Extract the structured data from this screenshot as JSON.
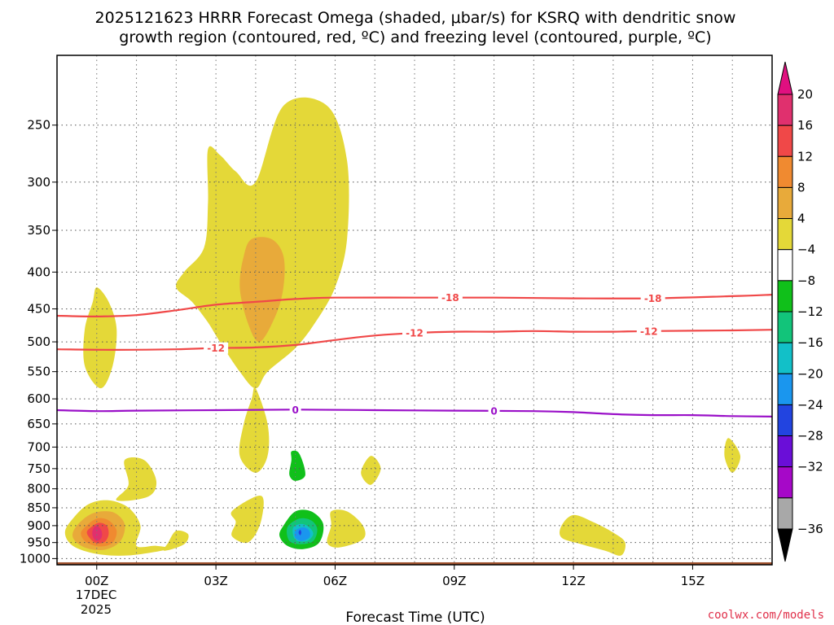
{
  "title_line1": "2025121623 HRRR Forecast Omega (shaded, μbar/s) for KSRQ with dendritic snow",
  "title_line2": "growth region (contoured, red, ºC) and freezing level (contoured, purple, ºC)",
  "credit": "coolwx.com/models",
  "chart_data": {
    "type": "contour",
    "title": "2025121623 HRRR Forecast Omega (shaded, μbar/s) for KSRQ with dendritic snow growth region (contoured, red, ºC) and freezing level (contoured, purple, ºC)",
    "xlabel": "Forecast Time (UTC)",
    "ylabel": "",
    "x_ticks": [
      "00Z",
      "03Z",
      "06Z",
      "09Z",
      "12Z",
      "15Z"
    ],
    "x_tick_hours": [
      0,
      3,
      6,
      9,
      12,
      15
    ],
    "x_date_label": [
      "17DEC",
      "2025"
    ],
    "xlim_hours": [
      -1,
      17
    ],
    "y_ticks": [
      250,
      300,
      350,
      400,
      450,
      500,
      550,
      600,
      650,
      700,
      750,
      800,
      850,
      900,
      950,
      1000
    ],
    "y_scale": "log-pressure",
    "ylim_hpa": [
      1020,
      200
    ],
    "grid": true,
    "colorbar": {
      "labels": [
        "20",
        "16",
        "12",
        "8",
        "4",
        "−4",
        "−8",
        "−12",
        "−16",
        "−20",
        "−24",
        "−28",
        "−32",
        "−36"
      ],
      "colors": [
        "#e0306e",
        "#f04848",
        "#f08a30",
        "#e8aa3a",
        "#e4d838",
        "#ffffff",
        "#10c01a",
        "#12c47a",
        "#12c0c8",
        "#1a96ee",
        "#2244e0",
        "#6a0ed8",
        "#a608c8",
        "#a8a8a8"
      ],
      "arrow_top_color": "#e01080",
      "arrow_bottom_color": "#000000"
    },
    "contour_lines": [
      {
        "label": "-18",
        "color": "#f04848",
        "type": "dendritic growth",
        "points": [
          [
            -1.0,
            460
          ],
          [
            0.0,
            461
          ],
          [
            1.0,
            459
          ],
          [
            2.0,
            452
          ],
          [
            3.0,
            444
          ],
          [
            4.0,
            440
          ],
          [
            5.0,
            436
          ],
          [
            6.0,
            434
          ],
          [
            8.0,
            434
          ],
          [
            10.0,
            434
          ],
          [
            12.0,
            435
          ],
          [
            14.0,
            435
          ],
          [
            16.0,
            432
          ],
          [
            17.0,
            430
          ]
        ],
        "label_positions": [
          8.9,
          14.0
        ]
      },
      {
        "label": "-12",
        "color": "#f04848",
        "type": "dendritic growth",
        "points": [
          [
            -1.0,
            512
          ],
          [
            0.5,
            513
          ],
          [
            2.0,
            512
          ],
          [
            3.0,
            510
          ],
          [
            4.0,
            509
          ],
          [
            5.0,
            505
          ],
          [
            6.0,
            497
          ],
          [
            7.0,
            490
          ],
          [
            8.0,
            486
          ],
          [
            9.0,
            484
          ],
          [
            10.0,
            484
          ],
          [
            11.0,
            483
          ],
          [
            12.0,
            484
          ],
          [
            13.0,
            484
          ],
          [
            14.0,
            483
          ],
          [
            16.0,
            482
          ],
          [
            17.0,
            481
          ]
        ],
        "label_positions": [
          3.0,
          8.0,
          13.9
        ]
      },
      {
        "label": "0",
        "color": "#9a10c8",
        "type": "freezing level",
        "points": [
          [
            -1.0,
            622
          ],
          [
            0.0,
            624
          ],
          [
            1.0,
            623
          ],
          [
            3.0,
            622
          ],
          [
            5.0,
            621
          ],
          [
            7.0,
            622
          ],
          [
            9.0,
            623
          ],
          [
            11.0,
            624
          ],
          [
            12.0,
            626
          ],
          [
            13.0,
            630
          ],
          [
            14.0,
            632
          ],
          [
            15.0,
            632
          ],
          [
            16.0,
            634
          ],
          [
            17.0,
            635
          ]
        ],
        "label_positions": [
          5.0,
          10.0
        ]
      }
    ],
    "terrain_top_hpa": 1012,
    "terrain_color": "#a0522d",
    "shaded_regions": [
      {
        "name": "rising-column",
        "color": "#e4d838",
        "points": [
          [
            2.8,
            270
          ],
          [
            3.1,
            275
          ],
          [
            3.5,
            290
          ],
          [
            4.0,
            300
          ],
          [
            4.7,
            235
          ],
          [
            5.8,
            235
          ],
          [
            6.3,
            280
          ],
          [
            6.3,
            360
          ],
          [
            6.0,
            420
          ],
          [
            5.5,
            470
          ],
          [
            5.0,
            510
          ],
          [
            4.3,
            550
          ],
          [
            4.0,
            580
          ],
          [
            3.6,
            550
          ],
          [
            3.1,
            500
          ],
          [
            2.8,
            470
          ],
          [
            2.4,
            440
          ],
          [
            2.0,
            420
          ],
          [
            2.2,
            400
          ],
          [
            2.7,
            370
          ],
          [
            2.8,
            320
          ]
        ]
      },
      {
        "name": "column-core",
        "color": "#e8aa3a",
        "points": [
          [
            3.9,
            360
          ],
          [
            4.4,
            360
          ],
          [
            4.7,
            380
          ],
          [
            4.7,
            420
          ],
          [
            4.5,
            460
          ],
          [
            4.1,
            500
          ],
          [
            3.8,
            470
          ],
          [
            3.6,
            420
          ],
          [
            3.7,
            380
          ]
        ]
      },
      {
        "name": "left-tall-band",
        "color": "#e4d838",
        "points": [
          [
            0.0,
            420
          ],
          [
            0.3,
            440
          ],
          [
            0.5,
            480
          ],
          [
            0.4,
            540
          ],
          [
            0.1,
            580
          ],
          [
            -0.3,
            540
          ],
          [
            -0.3,
            480
          ],
          [
            -0.1,
            440
          ]
        ]
      },
      {
        "name": "mid-streak",
        "color": "#e4d838",
        "points": [
          [
            4.0,
            580
          ],
          [
            4.3,
            650
          ],
          [
            4.3,
            720
          ],
          [
            4.0,
            760
          ],
          [
            3.6,
            720
          ],
          [
            3.7,
            650
          ],
          [
            3.9,
            600
          ]
        ]
      },
      {
        "name": "green-small",
        "color": "#10c01a",
        "points": [
          [
            4.9,
            710
          ],
          [
            5.1,
            715
          ],
          [
            5.25,
            765
          ],
          [
            5.0,
            780
          ],
          [
            4.85,
            765
          ],
          [
            4.9,
            730
          ]
        ]
      },
      {
        "name": "right-small-1",
        "color": "#e4d838",
        "points": [
          [
            6.9,
            720
          ],
          [
            7.15,
            750
          ],
          [
            6.9,
            790
          ],
          [
            6.65,
            760
          ]
        ]
      },
      {
        "name": "right-small-2",
        "color": "#e4d838",
        "points": [
          [
            15.9,
            680
          ],
          [
            16.2,
            720
          ],
          [
            16.0,
            760
          ],
          [
            15.8,
            720
          ]
        ]
      },
      {
        "name": "left-mid-blob",
        "color": "#e4d838",
        "points": [
          [
            0.7,
            730
          ],
          [
            1.2,
            730
          ],
          [
            1.5,
            780
          ],
          [
            1.3,
            820
          ],
          [
            0.5,
            830
          ],
          [
            0.8,
            790
          ]
        ]
      },
      {
        "name": "bl-blob-outer",
        "color": "#e4d838",
        "points": [
          [
            -0.6,
            880
          ],
          [
            -0.2,
            840
          ],
          [
            0.3,
            830
          ],
          [
            0.8,
            850
          ],
          [
            1.1,
            900
          ],
          [
            1.0,
            960
          ],
          [
            1.5,
            960
          ],
          [
            1.8,
            970
          ],
          [
            0.8,
            990
          ],
          [
            0.0,
            985
          ],
          [
            -0.6,
            960
          ],
          [
            -0.8,
            920
          ]
        ]
      },
      {
        "name": "bl-blob-8",
        "color": "#e8aa3a",
        "points": [
          [
            -0.5,
            900
          ],
          [
            -0.1,
            865
          ],
          [
            0.4,
            862
          ],
          [
            0.7,
            895
          ],
          [
            0.6,
            945
          ],
          [
            0.2,
            972
          ],
          [
            -0.3,
            965
          ],
          [
            -0.6,
            935
          ]
        ]
      },
      {
        "name": "bl-blob-12",
        "color": "#f08a30",
        "points": [
          [
            -0.3,
            905
          ],
          [
            0.0,
            880
          ],
          [
            0.3,
            885
          ],
          [
            0.5,
            915
          ],
          [
            0.4,
            950
          ],
          [
            0.1,
            962
          ],
          [
            -0.25,
            950
          ],
          [
            -0.4,
            925
          ]
        ]
      },
      {
        "name": "bl-blob-16",
        "color": "#f04848",
        "points": [
          [
            -0.15,
            905
          ],
          [
            0.05,
            892
          ],
          [
            0.25,
            900
          ],
          [
            0.3,
            925
          ],
          [
            0.2,
            948
          ],
          [
            0.0,
            952
          ],
          [
            -0.15,
            940
          ],
          [
            -0.25,
            920
          ]
        ]
      },
      {
        "name": "bl-blob-20",
        "color": "#e0306e",
        "points": [
          [
            0.0,
            900
          ],
          [
            0.12,
            915
          ],
          [
            0.12,
            935
          ],
          [
            0.0,
            945
          ],
          [
            -0.1,
            932
          ],
          [
            -0.1,
            912
          ]
        ]
      },
      {
        "name": "small-near-02Z",
        "color": "#e4d838",
        "points": [
          [
            1.8,
            950
          ],
          [
            2.0,
            915
          ],
          [
            2.3,
            925
          ],
          [
            2.2,
            955
          ],
          [
            1.7,
            975
          ]
        ]
      },
      {
        "name": "blob-0430",
        "color": "#e4d838",
        "points": [
          [
            3.4,
            860
          ],
          [
            4.0,
            820
          ],
          [
            4.2,
            830
          ],
          [
            4.1,
            900
          ],
          [
            3.8,
            950
          ],
          [
            3.4,
            930
          ],
          [
            3.5,
            890
          ]
        ]
      },
      {
        "name": "blob-06Z",
        "color": "#e4d838",
        "points": [
          [
            5.9,
            860
          ],
          [
            6.3,
            860
          ],
          [
            6.7,
            900
          ],
          [
            6.7,
            940
          ],
          [
            6.1,
            965
          ],
          [
            5.8,
            950
          ],
          [
            5.9,
            900
          ]
        ]
      },
      {
        "name": "blob-12Z",
        "color": "#e4d838",
        "points": [
          [
            11.7,
            900
          ],
          [
            12.0,
            870
          ],
          [
            12.5,
            890
          ],
          [
            13.0,
            920
          ],
          [
            13.3,
            950
          ],
          [
            13.2,
            990
          ],
          [
            12.8,
            975
          ],
          [
            12.2,
            955
          ],
          [
            11.7,
            935
          ]
        ]
      },
      {
        "name": "neg-outer",
        "color": "#10c01a",
        "points": [
          [
            4.7,
            900
          ],
          [
            5.0,
            860
          ],
          [
            5.4,
            860
          ],
          [
            5.7,
            895
          ],
          [
            5.6,
            950
          ],
          [
            5.2,
            970
          ],
          [
            4.8,
            960
          ],
          [
            4.6,
            930
          ]
        ]
      },
      {
        "name": "neg-8",
        "color": "#12c47a",
        "points": [
          [
            4.8,
            905
          ],
          [
            5.1,
            880
          ],
          [
            5.4,
            885
          ],
          [
            5.55,
            910
          ],
          [
            5.45,
            945
          ],
          [
            5.15,
            955
          ],
          [
            4.85,
            945
          ]
        ]
      },
      {
        "name": "neg-12",
        "color": "#12c0c8",
        "points": [
          [
            4.95,
            905
          ],
          [
            5.15,
            895
          ],
          [
            5.35,
            905
          ],
          [
            5.45,
            925
          ],
          [
            5.3,
            945
          ],
          [
            5.05,
            945
          ],
          [
            4.95,
            930
          ]
        ]
      },
      {
        "name": "neg-16",
        "color": "#1a96ee",
        "points": [
          [
            5.0,
            915
          ],
          [
            5.2,
            905
          ],
          [
            5.35,
            915
          ],
          [
            5.35,
            935
          ],
          [
            5.15,
            945
          ],
          [
            5.0,
            935
          ]
        ]
      },
      {
        "name": "neg-20",
        "color": "#2244e0",
        "points": [
          [
            5.08,
            920
          ],
          [
            5.12,
            912
          ],
          [
            5.15,
            920
          ],
          [
            5.12,
            928
          ]
        ]
      }
    ]
  }
}
